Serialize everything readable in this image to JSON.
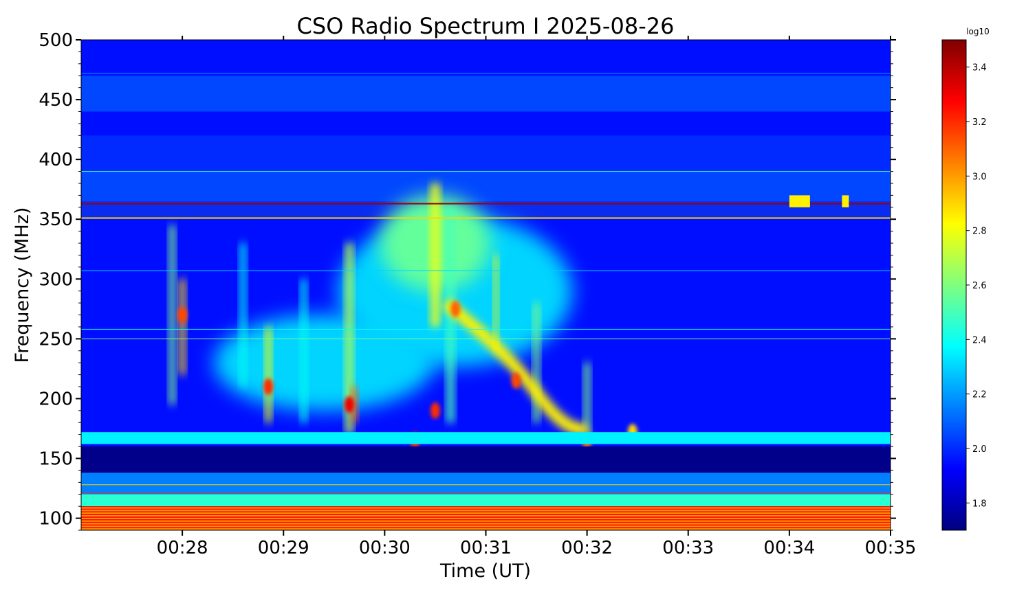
{
  "chart_data": {
    "type": "heatmap",
    "title": "CSO Radio Spectrum I 2025-08-26",
    "xlabel": "Time (UT)",
    "ylabel": "Frequency (MHz)",
    "colorbar_label": "log10",
    "colormap": "jet",
    "x_range": [
      "00:27:00",
      "00:35:00"
    ],
    "x_tick_labels": [
      "00:28",
      "00:29",
      "00:30",
      "00:31",
      "00:32",
      "00:33",
      "00:34",
      "00:35"
    ],
    "ylim": [
      90,
      500
    ],
    "y_ticks": [
      100,
      150,
      200,
      250,
      300,
      350,
      400,
      450,
      500
    ],
    "clim": [
      1.7,
      3.5
    ],
    "colorbar_ticks": [
      1.8,
      2.0,
      2.2,
      2.4,
      2.6,
      2.8,
      3.0,
      3.2,
      3.4
    ],
    "colors": [
      "#00007f",
      "#0000ff",
      "#007fff",
      "#00ffff",
      "#7fff7f",
      "#ffff00",
      "#ff7f00",
      "#ff0000",
      "#7f0000"
    ]
  }
}
